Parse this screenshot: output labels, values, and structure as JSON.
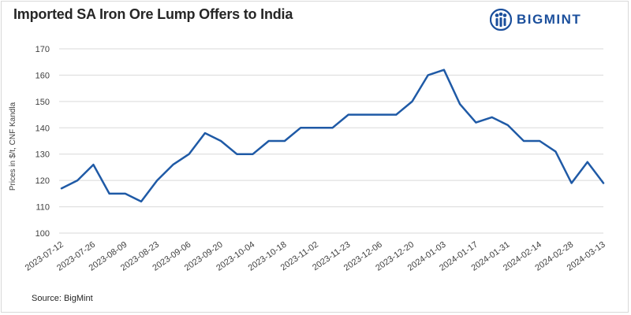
{
  "header": {
    "title": "Imported SA Iron Ore Lump Offers to India",
    "brand": "BIGMINT"
  },
  "footer": {
    "source": "Source: BigMint"
  },
  "colors": {
    "line": "#1f5aa6",
    "grid": "#d9d9d9",
    "brand": "#1b4f9c"
  },
  "chart_data": {
    "type": "line",
    "title": "Imported SA Iron Ore Lump Offers to India",
    "xlabel": "",
    "ylabel": "Prices in $/t, CNF Kandla",
    "ylim": [
      100,
      170
    ],
    "yticks": [
      100,
      110,
      120,
      130,
      140,
      150,
      160,
      170
    ],
    "grid": "horizontal",
    "x": [
      "2023-07-12",
      "2023-07-19",
      "2023-07-26",
      "2023-08-02",
      "2023-08-09",
      "2023-08-16",
      "2023-08-23",
      "2023-08-30",
      "2023-09-06",
      "2023-09-13",
      "2023-09-20",
      "2023-09-27",
      "2023-10-04",
      "2023-10-11",
      "2023-10-18",
      "2023-10-25",
      "2023-11-02",
      "2023-11-09",
      "2023-11-23",
      "2023-11-30",
      "2023-12-06",
      "2023-12-13",
      "2023-12-20",
      "2023-12-27",
      "2024-01-03",
      "2024-01-10",
      "2024-01-17",
      "2024-01-24",
      "2024-01-31",
      "2024-02-07",
      "2024-02-14",
      "2024-02-21",
      "2024-02-28",
      "2024-03-06",
      "2024-03-13"
    ],
    "xtick_labels": [
      "2023-07-12",
      "2023-07-26",
      "2023-08-09",
      "2023-08-23",
      "2023-09-06",
      "2023-09-20",
      "2023-10-04",
      "2023-10-18",
      "2023-11-02",
      "2023-11-23",
      "2023-12-06",
      "2023-12-20",
      "2024-01-03",
      "2024-01-17",
      "2024-01-31",
      "2024-02-14",
      "2024-02-28",
      "2024-03-13"
    ],
    "series": [
      {
        "name": "Imported SA Iron Ore Lump",
        "values": [
          117,
          120,
          126,
          115,
          115,
          112,
          120,
          126,
          130,
          138,
          135,
          130,
          130,
          135,
          135,
          140,
          140,
          140,
          145,
          145,
          145,
          145,
          150,
          160,
          162,
          149,
          142,
          144,
          141,
          135,
          135,
          131,
          119,
          127,
          119
        ]
      }
    ]
  }
}
